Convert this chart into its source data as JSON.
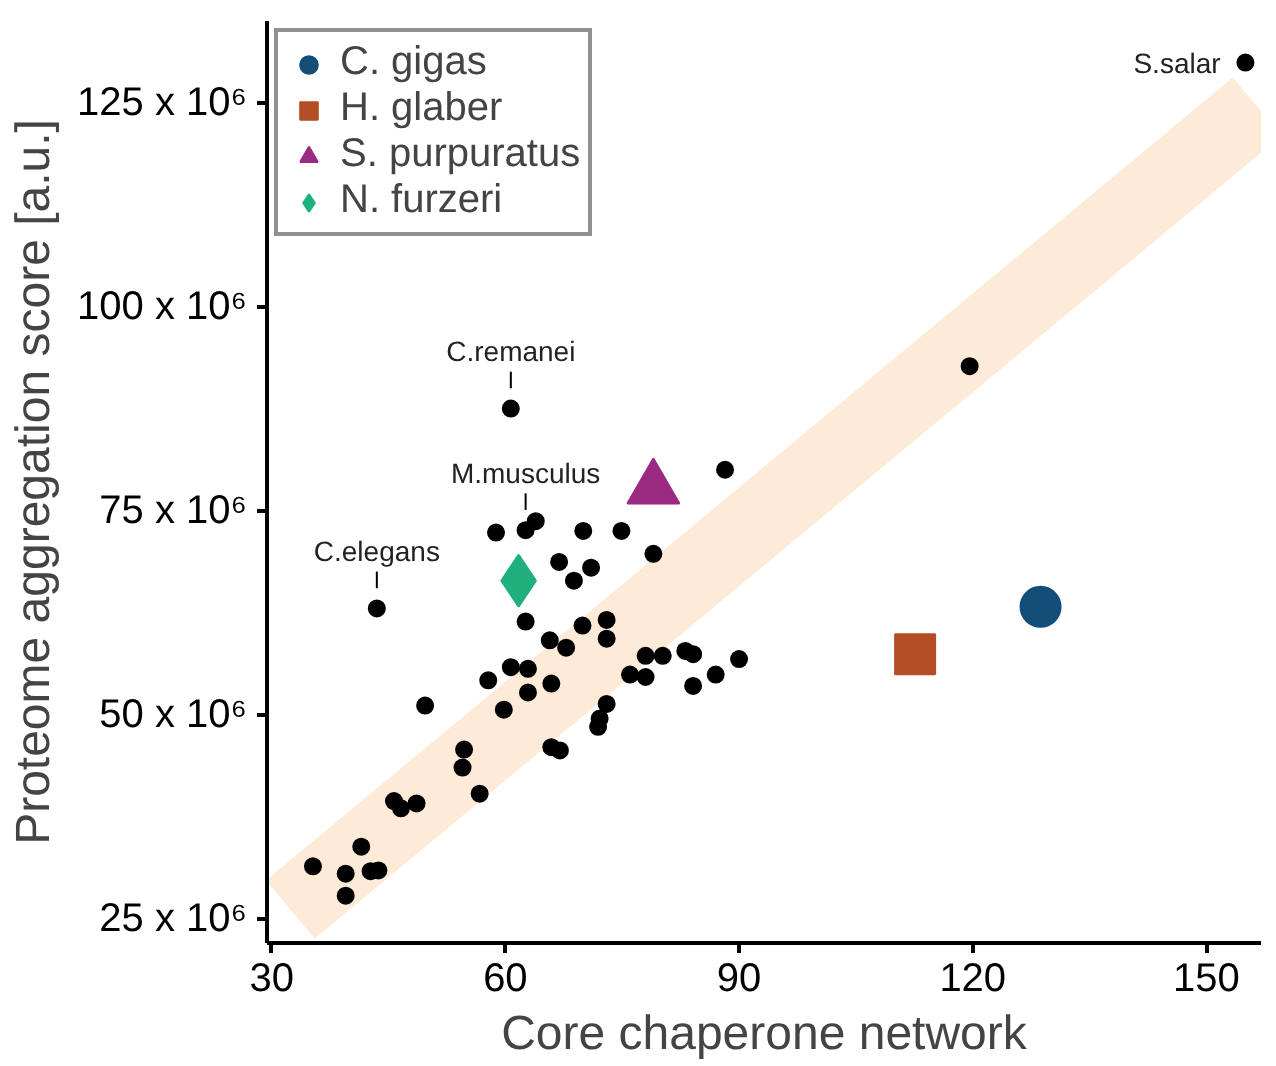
{
  "chart_data": {
    "type": "scatter",
    "xlabel": "Core chaperone network",
    "ylabel": "Proteome aggregation score [a.u.]",
    "xlim": [
      29.4,
      157
    ],
    "ylim": [
      22000000,
      135000000
    ],
    "xticks": [
      30,
      60,
      90,
      120,
      150
    ],
    "yticks": [
      {
        "value": 25000000,
        "label": "25 x 10⁶"
      },
      {
        "value": 50000000,
        "label": "50 x 10⁶"
      },
      {
        "value": 75000000,
        "label": "75 x 10⁶"
      },
      {
        "value": 100000000,
        "label": "100 x 10⁶"
      },
      {
        "value": 125000000,
        "label": "125 x 10⁶"
      }
    ],
    "grid": false,
    "legend": "top left",
    "series": [
      {
        "type": "line",
        "color": "#fdebd7",
        "x": [
          32.4,
          156.5
        ],
        "values": [
          26100000,
          124500000
        ]
      },
      {
        "color": "#000000",
        "marker": "circle",
        "x": [
          60.7,
          88.2,
          58.8,
          62.6,
          63.9,
          70.0,
          74.9,
          79.0,
          66.9,
          71.0,
          68.8,
          43.5,
          62.6,
          69.9,
          73.0,
          73.0,
          65.7,
          67.8,
          78.0,
          80.2,
          83.1,
          84.1,
          90.0,
          76.0,
          78.0,
          87.0,
          84.1,
          60.7,
          62.9,
          57.8,
          65.9,
          62.9,
          59.8,
          49.7,
          73.0,
          72.1,
          71.9,
          65.9,
          67.0,
          54.7,
          54.5,
          56.7,
          45.7,
          46.6,
          48.6,
          41.5,
          35.3,
          39.5,
          39.5,
          42.7,
          43.7,
          155.0,
          119.6
        ],
        "values": [
          87500000,
          80000000,
          72300000,
          72600000,
          73700000,
          72500000,
          72500000,
          69700000,
          68700000,
          68000000,
          66400000,
          63000000,
          61400000,
          60900000,
          61600000,
          59300000,
          59100000,
          58200000,
          57200000,
          57200000,
          57800000,
          57400000,
          56800000,
          54900000,
          54600000,
          54900000,
          53500000,
          55800000,
          55600000,
          54200000,
          53800000,
          52700000,
          50600000,
          51100000,
          51300000,
          49500000,
          48500000,
          46000000,
          45600000,
          45700000,
          43500000,
          40300000,
          39400000,
          38500000,
          39100000,
          33800000,
          31400000,
          30500000,
          27800000,
          30800000,
          30900000,
          129900000,
          92700000
        ]
      },
      {
        "name": "C. gigas",
        "color": "#124e78",
        "marker": "circle",
        "x": [
          128.7
        ],
        "values": [
          63200000
        ]
      },
      {
        "name": "H. glaber",
        "color": "#b34d24",
        "marker": "square",
        "x": [
          112.6
        ],
        "values": [
          57400000
        ]
      },
      {
        "name": "S. purpuratus",
        "color": "#9b2a83",
        "marker": "triangle",
        "x": [
          79.0
        ],
        "values": [
          77700000
        ]
      },
      {
        "name": "N. furzeri",
        "color": "#1fb07e",
        "marker": "diamond",
        "x": [
          61.7
        ],
        "values": [
          66400000
        ]
      }
    ],
    "annotations": [
      {
        "text": "C.remanei",
        "x": 60.7,
        "y": 87500000
      },
      {
        "text": "M.musculus",
        "x": 62.6,
        "y": 72600000
      },
      {
        "text": "C.elegans",
        "x": 43.5,
        "y": 63000000
      },
      {
        "text": "S.salar",
        "x": 155.0,
        "y": 129900000
      }
    ]
  }
}
